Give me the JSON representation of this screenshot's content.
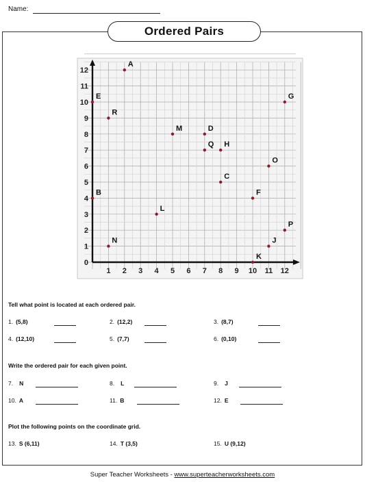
{
  "header": {
    "name_label": "Name:"
  },
  "title": "Ordered Pairs",
  "grid": {
    "x_ticks": [
      "1",
      "2",
      "3",
      "4",
      "5",
      "6",
      "7",
      "8",
      "9",
      "10",
      "11",
      "12"
    ],
    "y_ticks": [
      "0",
      "1",
      "2",
      "3",
      "4",
      "5",
      "6",
      "7",
      "8",
      "9",
      "10",
      "11",
      "12"
    ],
    "points": [
      {
        "label": "A",
        "x": 2,
        "y": 12
      },
      {
        "label": "B",
        "x": 0,
        "y": 4
      },
      {
        "label": "C",
        "x": 8,
        "y": 5
      },
      {
        "label": "D",
        "x": 7,
        "y": 8
      },
      {
        "label": "E",
        "x": 0,
        "y": 10
      },
      {
        "label": "F",
        "x": 10,
        "y": 4
      },
      {
        "label": "G",
        "x": 12,
        "y": 10
      },
      {
        "label": "H",
        "x": 8,
        "y": 7
      },
      {
        "label": "J",
        "x": 11,
        "y": 1
      },
      {
        "label": "K",
        "x": 10,
        "y": 0
      },
      {
        "label": "L",
        "x": 4,
        "y": 3
      },
      {
        "label": "M",
        "x": 5,
        "y": 8
      },
      {
        "label": "N",
        "x": 1,
        "y": 1
      },
      {
        "label": "O",
        "x": 11,
        "y": 6
      },
      {
        "label": "P",
        "x": 12,
        "y": 2
      },
      {
        "label": "Q",
        "x": 7,
        "y": 7
      },
      {
        "label": "R",
        "x": 1,
        "y": 9
      }
    ]
  },
  "section1": {
    "instruction": "Tell what point is located at each ordered pair.",
    "items": [
      {
        "num": "1.",
        "val": "(5,8)"
      },
      {
        "num": "2.",
        "val": "(12,2)"
      },
      {
        "num": "3.",
        "val": "(8,7)"
      },
      {
        "num": "4.",
        "val": "(12,10)"
      },
      {
        "num": "5.",
        "val": "(7,7)"
      },
      {
        "num": "6.",
        "val": "(0,10)"
      }
    ]
  },
  "section2": {
    "instruction": "Write the ordered pair for each given point.",
    "items": [
      {
        "num": "7.",
        "val": "N"
      },
      {
        "num": "8.",
        "val": "L"
      },
      {
        "num": "9.",
        "val": "J"
      },
      {
        "num": "10.",
        "val": "A"
      },
      {
        "num": "11.",
        "val": "B"
      },
      {
        "num": "12.",
        "val": "E"
      }
    ]
  },
  "section3": {
    "instruction": "Plot the following points on the coordinate grid.",
    "items": [
      {
        "num": "13.",
        "val": "S (6,11)"
      },
      {
        "num": "14.",
        "val": "T (3,5)"
      },
      {
        "num": "15.",
        "val": "U (9,12)"
      }
    ]
  },
  "footer": {
    "text": "Super Teacher Worksheets - ",
    "link": "www.superteacherworksheets.com"
  }
}
